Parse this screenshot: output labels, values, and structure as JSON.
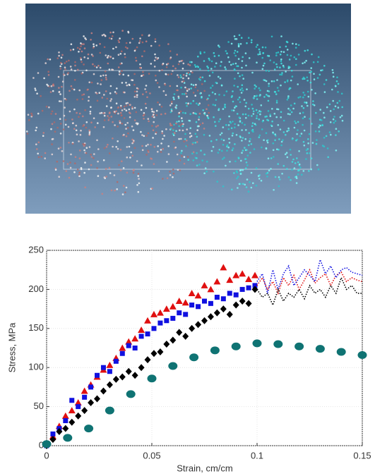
{
  "chart_data": {
    "type": "scatter",
    "x_label": "Strain, cm/cm",
    "y_label": "Stress, MPa",
    "xlim": [
      0,
      0.15
    ],
    "ylim": [
      0,
      250
    ],
    "xticks": [
      0,
      0.05,
      0.1,
      0.15
    ],
    "yticks": [
      0,
      50,
      100,
      150,
      200,
      250
    ],
    "grid": true,
    "series": [
      {
        "color": "#e01010",
        "marker": "triangle",
        "x": [
          0,
          0.003,
          0.006,
          0.009,
          0.012,
          0.015,
          0.018,
          0.021,
          0.024,
          0.027,
          0.03,
          0.033,
          0.036,
          0.039,
          0.042,
          0.045,
          0.048,
          0.051,
          0.054,
          0.057,
          0.06,
          0.063,
          0.066,
          0.069,
          0.072,
          0.075,
          0.078,
          0.081,
          0.084,
          0.087,
          0.09,
          0.093,
          0.096,
          0.099
        ],
        "values": [
          2,
          12,
          25,
          38,
          45,
          55,
          70,
          78,
          88,
          97,
          103,
          112,
          125,
          133,
          137,
          148,
          160,
          168,
          170,
          175,
          178,
          185,
          183,
          195,
          192,
          205,
          200,
          210,
          228,
          212,
          218,
          220,
          213,
          218
        ]
      },
      {
        "color": "#1010e0",
        "marker": "square",
        "x": [
          0,
          0.003,
          0.006,
          0.009,
          0.012,
          0.015,
          0.018,
          0.021,
          0.024,
          0.027,
          0.03,
          0.033,
          0.036,
          0.039,
          0.042,
          0.045,
          0.048,
          0.051,
          0.054,
          0.057,
          0.06,
          0.063,
          0.066,
          0.069,
          0.072,
          0.075,
          0.078,
          0.081,
          0.084,
          0.087,
          0.09,
          0.093,
          0.096,
          0.099
        ],
        "values": [
          0,
          15,
          22,
          32,
          58,
          50,
          62,
          75,
          90,
          100,
          95,
          108,
          118,
          128,
          125,
          140,
          143,
          150,
          157,
          160,
          163,
          170,
          168,
          180,
          178,
          185,
          182,
          190,
          188,
          195,
          193,
          200,
          202,
          205
        ]
      },
      {
        "color": "#000000",
        "marker": "diamond",
        "x": [
          0,
          0.003,
          0.006,
          0.009,
          0.012,
          0.015,
          0.018,
          0.021,
          0.024,
          0.027,
          0.03,
          0.033,
          0.036,
          0.039,
          0.042,
          0.045,
          0.048,
          0.051,
          0.054,
          0.057,
          0.06,
          0.063,
          0.066,
          0.069,
          0.072,
          0.075,
          0.078,
          0.081,
          0.084,
          0.087,
          0.09,
          0.093,
          0.096,
          0.099
        ],
        "values": [
          0,
          8,
          18,
          22,
          30,
          38,
          45,
          55,
          60,
          70,
          78,
          85,
          88,
          95,
          90,
          100,
          110,
          118,
          120,
          130,
          135,
          145,
          140,
          150,
          155,
          160,
          165,
          170,
          175,
          168,
          180,
          185,
          182,
          200
        ]
      },
      {
        "color": "#0f7373",
        "marker": "ellipse",
        "x": [
          0,
          0.01,
          0.02,
          0.03,
          0.04,
          0.05,
          0.06,
          0.07,
          0.08,
          0.09,
          0.1,
          0.11,
          0.12,
          0.13,
          0.14,
          0.15
        ],
        "values": [
          2,
          10,
          22,
          45,
          66,
          86,
          102,
          113,
          122,
          127,
          131,
          130,
          127,
          124,
          120,
          116
        ]
      },
      {
        "color": "#e01010",
        "marker": "dotted-line",
        "x": [
          0.1,
          0.1025,
          0.105,
          0.1075,
          0.11,
          0.1125,
          0.115,
          0.1175,
          0.12,
          0.1225,
          0.125,
          0.1275,
          0.13,
          0.1325,
          0.135,
          0.1375,
          0.14,
          0.1425,
          0.145,
          0.1475,
          0.15
        ],
        "values": [
          205,
          215,
          200,
          210,
          195,
          215,
          205,
          218,
          200,
          212,
          225,
          208,
          215,
          220,
          205,
          218,
          222,
          210,
          215,
          212,
          210
        ]
      },
      {
        "color": "#1010e0",
        "marker": "dotted-line",
        "x": [
          0.1,
          0.1025,
          0.105,
          0.1075,
          0.11,
          0.1125,
          0.115,
          0.1175,
          0.12,
          0.1225,
          0.125,
          0.1275,
          0.13,
          0.1325,
          0.135,
          0.1375,
          0.14,
          0.1425,
          0.145,
          0.1475,
          0.15
        ],
        "values": [
          210,
          220,
          195,
          225,
          200,
          220,
          230,
          205,
          215,
          225,
          218,
          210,
          238,
          220,
          230,
          215,
          225,
          228,
          222,
          220,
          218
        ]
      },
      {
        "color": "#000000",
        "marker": "dotted-line",
        "x": [
          0.1,
          0.1025,
          0.105,
          0.1075,
          0.11,
          0.1125,
          0.115,
          0.1175,
          0.12,
          0.1225,
          0.125,
          0.1275,
          0.13,
          0.1325,
          0.135,
          0.1375,
          0.14,
          0.1425,
          0.145,
          0.1475,
          0.15
        ],
        "values": [
          200,
          190,
          195,
          180,
          200,
          185,
          195,
          190,
          200,
          188,
          205,
          195,
          200,
          190,
          205,
          195,
          215,
          200,
          205,
          195,
          195
        ]
      }
    ]
  }
}
